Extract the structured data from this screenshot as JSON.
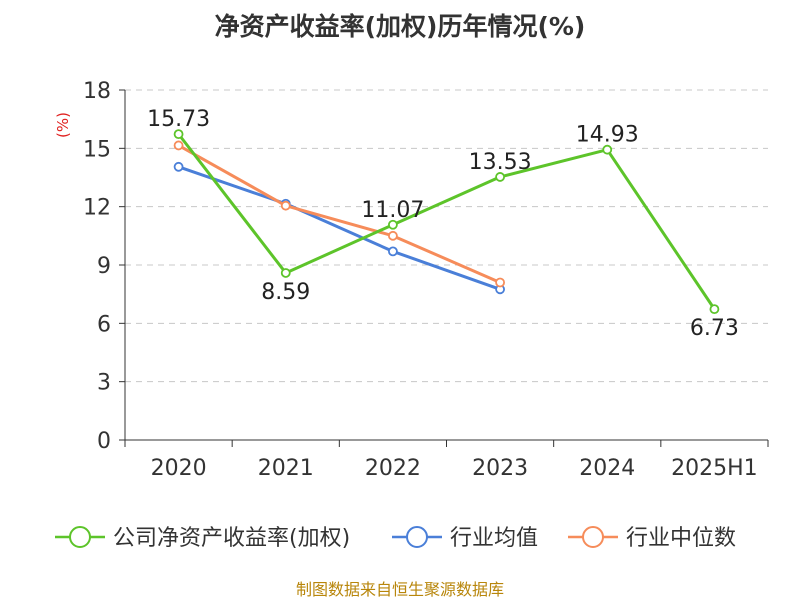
{
  "chart_data": {
    "type": "line",
    "title": "净资产收益率(加权)历年情况(%)",
    "ylabel": "(%)",
    "categories": [
      "2020",
      "2021",
      "2022",
      "2023",
      "2024",
      "2025H1"
    ],
    "ylim": [
      0,
      18
    ],
    "yticks": [
      "0",
      "3",
      "6",
      "9",
      "12",
      "15",
      "18"
    ],
    "grid": true,
    "legend_position": "bottom",
    "series": [
      {
        "name": "公司净资产收益率(加权)",
        "color": "#5dc42a",
        "values": [
          15.73,
          8.59,
          11.07,
          13.53,
          14.93,
          6.73
        ],
        "labels": [
          "15.73",
          "8.59",
          "11.07",
          "13.53",
          "14.93",
          "6.73"
        ]
      },
      {
        "name": "行业均值",
        "color": "#4a7fd8",
        "values": [
          14.05,
          12.15,
          9.7,
          7.75,
          null,
          null
        ]
      },
      {
        "name": "行业中位数",
        "color": "#f68c5a",
        "values": [
          15.15,
          12.05,
          10.5,
          8.1,
          null,
          null
        ]
      }
    ]
  },
  "source": "制图数据来自恒生聚源数据库"
}
